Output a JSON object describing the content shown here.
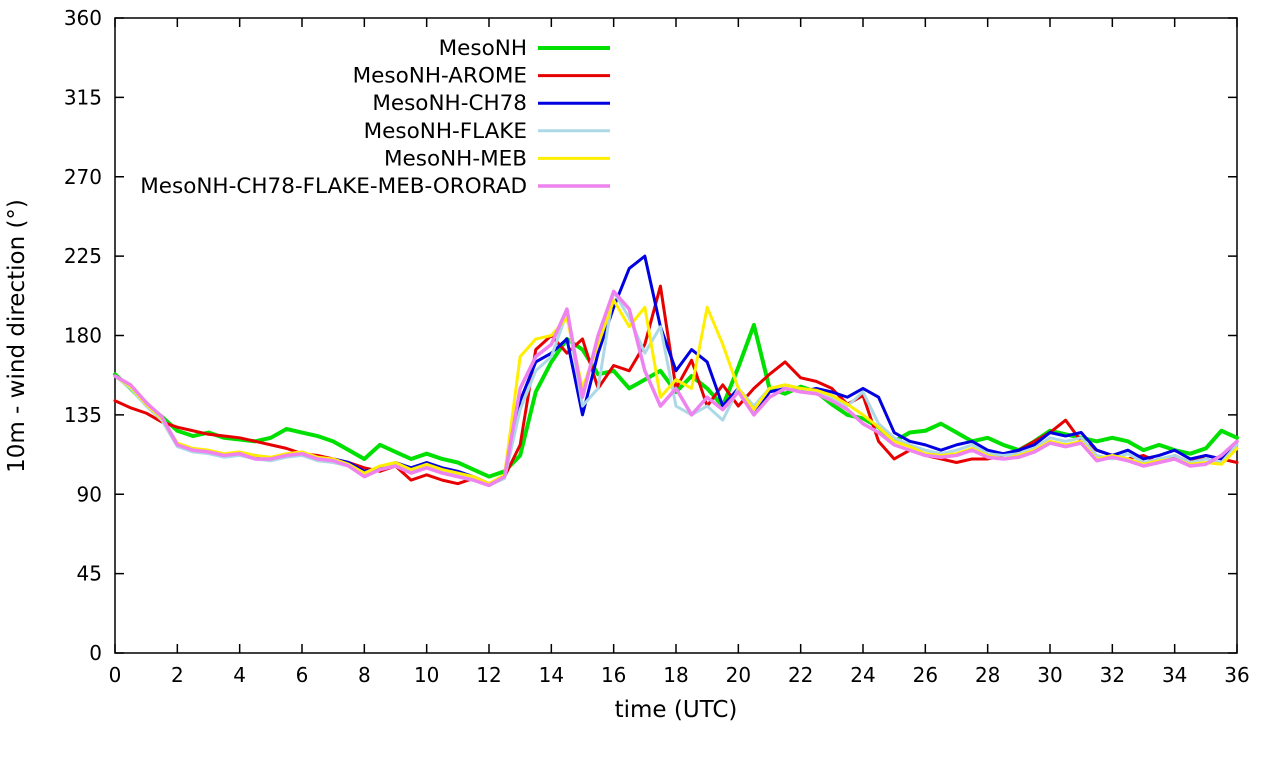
{
  "chart_data": {
    "type": "line",
    "title": "",
    "xlabel": "time (UTC)",
    "ylabel": "10m - wind direction (°)",
    "xlim": [
      0,
      36
    ],
    "ylim": [
      0,
      360
    ],
    "xticks": [
      0,
      2,
      4,
      6,
      8,
      10,
      12,
      14,
      16,
      18,
      20,
      22,
      24,
      26,
      28,
      30,
      32,
      34,
      36
    ],
    "yticks": [
      0,
      45,
      90,
      135,
      180,
      225,
      270,
      315,
      360
    ],
    "grid": false,
    "legend_position": "top-center-inside",
    "x": [
      0,
      0.5,
      1,
      1.5,
      2,
      2.5,
      3,
      3.5,
      4,
      4.5,
      5,
      5.5,
      6,
      6.5,
      7,
      7.5,
      8,
      8.5,
      9,
      9.5,
      10,
      10.5,
      11,
      11.5,
      12,
      12.5,
      13,
      13.5,
      14,
      14.5,
      15,
      15.5,
      16,
      16.5,
      17,
      17.5,
      18,
      18.5,
      19,
      19.5,
      20,
      20.5,
      21,
      21.5,
      22,
      22.5,
      23,
      23.5,
      24,
      24.5,
      25,
      25.5,
      26,
      26.5,
      27,
      27.5,
      28,
      28.5,
      29,
      29.5,
      30,
      30.5,
      31,
      31.5,
      32,
      32.5,
      33,
      33.5,
      34,
      34.5,
      35,
      35.5,
      36
    ],
    "series": [
      {
        "name": "MesoNH",
        "color": "#00e000",
        "values": [
          158,
          150,
          141,
          134,
          126,
          123,
          125,
          122,
          121,
          120,
          122,
          127,
          125,
          123,
          120,
          115,
          110,
          118,
          114,
          110,
          113,
          110,
          108,
          104,
          100,
          103,
          112,
          148,
          165,
          178,
          172,
          158,
          160,
          150,
          155,
          160,
          148,
          157,
          150,
          140,
          162,
          186,
          150,
          147,
          151,
          148,
          141,
          135,
          133,
          128,
          120,
          125,
          126,
          130,
          125,
          120,
          122,
          118,
          115,
          120,
          126,
          124,
          122,
          120,
          122,
          120,
          115,
          118,
          115,
          113,
          116,
          126,
          122
        ]
      },
      {
        "name": "MesoNH-AROME",
        "color": "#e60000",
        "values": [
          143,
          139,
          136,
          131,
          128,
          126,
          124,
          123,
          122,
          120,
          118,
          116,
          113,
          112,
          110,
          108,
          105,
          103,
          106,
          98,
          101,
          98,
          96,
          99,
          95,
          100,
          118,
          172,
          180,
          170,
          178,
          150,
          163,
          160,
          175,
          208,
          150,
          166,
          140,
          152,
          140,
          150,
          158,
          165,
          156,
          154,
          150,
          141,
          146,
          120,
          110,
          115,
          112,
          110,
          108,
          110,
          110,
          112,
          115,
          120,
          125,
          132,
          120,
          115,
          112,
          110,
          112,
          108,
          112,
          108,
          112,
          110,
          108
        ]
      },
      {
        "name": "MesoNH-CH78",
        "color": "#0000e0",
        "values": [
          157,
          151,
          141,
          133,
          118,
          115,
          114,
          112,
          113,
          112,
          110,
          112,
          113,
          110,
          110,
          108,
          103,
          105,
          108,
          105,
          108,
          105,
          103,
          100,
          96,
          100,
          143,
          165,
          170,
          178,
          135,
          170,
          196,
          218,
          225,
          185,
          160,
          172,
          165,
          140,
          150,
          135,
          148,
          150,
          148,
          150,
          148,
          145,
          150,
          145,
          125,
          120,
          118,
          115,
          118,
          120,
          115,
          113,
          115,
          118,
          125,
          123,
          125,
          115,
          112,
          115,
          110,
          112,
          115,
          110,
          112,
          110,
          120
        ]
      },
      {
        "name": "MesoNH-FLAKE",
        "color": "#add8e6",
        "values": [
          157,
          150,
          140,
          132,
          117,
          114,
          113,
          111,
          112,
          110,
          109,
          111,
          112,
          109,
          108,
          106,
          100,
          104,
          107,
          103,
          106,
          103,
          101,
          99,
          95,
          99,
          138,
          160,
          168,
          193,
          140,
          150,
          205,
          190,
          170,
          185,
          140,
          135,
          140,
          132,
          150,
          140,
          150,
          152,
          150,
          148,
          145,
          140,
          148,
          130,
          122,
          118,
          115,
          113,
          115,
          118,
          113,
          112,
          113,
          116,
          122,
          120,
          122,
          112,
          110,
          113,
          108,
          110,
          112,
          108,
          110,
          108,
          118
        ]
      },
      {
        "name": "MesoNH-MEB",
        "color": "#ffee00",
        "values": [
          157,
          151,
          141,
          133,
          119,
          116,
          115,
          113,
          114,
          112,
          111,
          113,
          114,
          111,
          110,
          107,
          102,
          106,
          108,
          104,
          107,
          104,
          102,
          100,
          96,
          101,
          168,
          178,
          180,
          190,
          150,
          175,
          200,
          185,
          196,
          145,
          155,
          150,
          196,
          175,
          150,
          138,
          150,
          152,
          150,
          149,
          146,
          141,
          135,
          128,
          120,
          117,
          113,
          112,
          113,
          116,
          112,
          110,
          112,
          115,
          120,
          118,
          120,
          110,
          112,
          110,
          107,
          109,
          110,
          107,
          108,
          107,
          116
        ]
      },
      {
        "name": "MesoNH-CH78-FLAKE-MEB-ORORAD",
        "color": "#ee82ee",
        "values": [
          157,
          152,
          142,
          134,
          118,
          115,
          114,
          112,
          113,
          110,
          110,
          112,
          113,
          110,
          109,
          106,
          100,
          104,
          106,
          102,
          105,
          102,
          100,
          98,
          95,
          100,
          150,
          168,
          175,
          195,
          145,
          180,
          205,
          195,
          160,
          140,
          150,
          135,
          145,
          138,
          148,
          135,
          145,
          150,
          148,
          147,
          143,
          138,
          130,
          125,
          118,
          115,
          112,
          111,
          112,
          115,
          111,
          110,
          111,
          114,
          119,
          117,
          119,
          109,
          111,
          109,
          106,
          108,
          110,
          106,
          107,
          112,
          120
        ]
      }
    ]
  }
}
